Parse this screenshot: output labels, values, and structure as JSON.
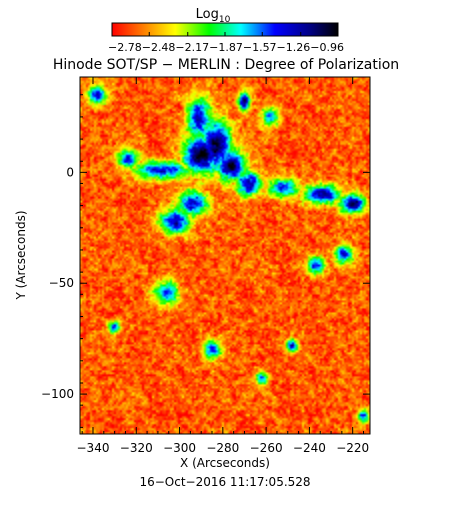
{
  "chart_data": {
    "type": "heatmap",
    "title": "Hinode SOT/SP − MERLIN : Degree of Polarization",
    "xlabel": "X (Arcseconds)",
    "ylabel": "Y (Arcseconds)",
    "timestamp": "16−Oct−2016 11:17:05.528",
    "xlim": [
      -346,
      -212
    ],
    "ylim": [
      -118,
      43
    ],
    "x_ticks": [
      -340,
      -320,
      -300,
      -280,
      -260,
      -240,
      -220
    ],
    "x_tick_labels": [
      "−340",
      "−320",
      "−300",
      "−280",
      "−260",
      "−240",
      "−220"
    ],
    "y_ticks": [
      0,
      -50,
      -100
    ],
    "y_tick_labels": [
      "0",
      "−50",
      "−100"
    ],
    "colorbar": {
      "label_main": "Log",
      "label_sub": "10",
      "range": [
        -2.78,
        -0.96
      ],
      "ticks": [
        -2.78,
        -2.48,
        -2.17,
        -1.87,
        -1.57,
        -1.26,
        -0.96
      ],
      "tick_text": "−2.78−2.48−2.17−1.87−1.57−1.26−0.96",
      "colormap": [
        "#ff0000",
        "#ff7f00",
        "#ffff00",
        "#00ff00",
        "#00ffff",
        "#0000ff",
        "#000080",
        "#000000"
      ]
    },
    "field": {
      "background_level": -2.6,
      "concentrations": [
        {
          "x": -290,
          "y": 8,
          "sx": 6,
          "sy": 6,
          "level": -0.96
        },
        {
          "x": -283,
          "y": 12,
          "sx": 5,
          "sy": 8,
          "level": -1.05
        },
        {
          "x": -276,
          "y": 3,
          "sx": 5,
          "sy": 5,
          "level": -1.1
        },
        {
          "x": -268,
          "y": -5,
          "sx": 4,
          "sy": 4,
          "level": -1.2
        },
        {
          "x": -294,
          "y": -14,
          "sx": 5,
          "sy": 4,
          "level": -1.3
        },
        {
          "x": -302,
          "y": -22,
          "sx": 5,
          "sy": 4,
          "level": -1.3
        },
        {
          "x": -308,
          "y": 1,
          "sx": 9,
          "sy": 3,
          "level": -1.4
        },
        {
          "x": -324,
          "y": 6,
          "sx": 4,
          "sy": 3,
          "level": -1.5
        },
        {
          "x": -291,
          "y": 24,
          "sx": 4,
          "sy": 7,
          "level": -1.3
        },
        {
          "x": -270,
          "y": 32,
          "sx": 2,
          "sy": 3,
          "level": -1.2
        },
        {
          "x": -338,
          "y": 35,
          "sx": 3,
          "sy": 3,
          "level": -1.4
        },
        {
          "x": -252,
          "y": -7,
          "sx": 5,
          "sy": 3,
          "level": -1.45
        },
        {
          "x": -234,
          "y": -10,
          "sx": 6,
          "sy": 3,
          "level": -1.2
        },
        {
          "x": -220,
          "y": -14,
          "sx": 4,
          "sy": 3,
          "level": -1.1
        },
        {
          "x": -224,
          "y": -37,
          "sx": 3,
          "sy": 3,
          "level": -1.4
        },
        {
          "x": -237,
          "y": -42,
          "sx": 3,
          "sy": 3,
          "level": -1.5
        },
        {
          "x": -306,
          "y": -54,
          "sx": 4,
          "sy": 4,
          "level": -1.5
        },
        {
          "x": -330,
          "y": -70,
          "sx": 2,
          "sy": 2,
          "level": -1.5
        },
        {
          "x": -285,
          "y": -80,
          "sx": 3,
          "sy": 3,
          "level": -1.5
        },
        {
          "x": -248,
          "y": -78,
          "sx": 2,
          "sy": 2,
          "level": -1.4
        },
        {
          "x": -262,
          "y": -93,
          "sx": 2,
          "sy": 2,
          "level": -1.5
        },
        {
          "x": -215,
          "y": -110,
          "sx": 2,
          "sy": 2,
          "level": -1.5
        },
        {
          "x": -258,
          "y": 25,
          "sx": 3,
          "sy": 3,
          "level": -1.6
        }
      ]
    }
  }
}
